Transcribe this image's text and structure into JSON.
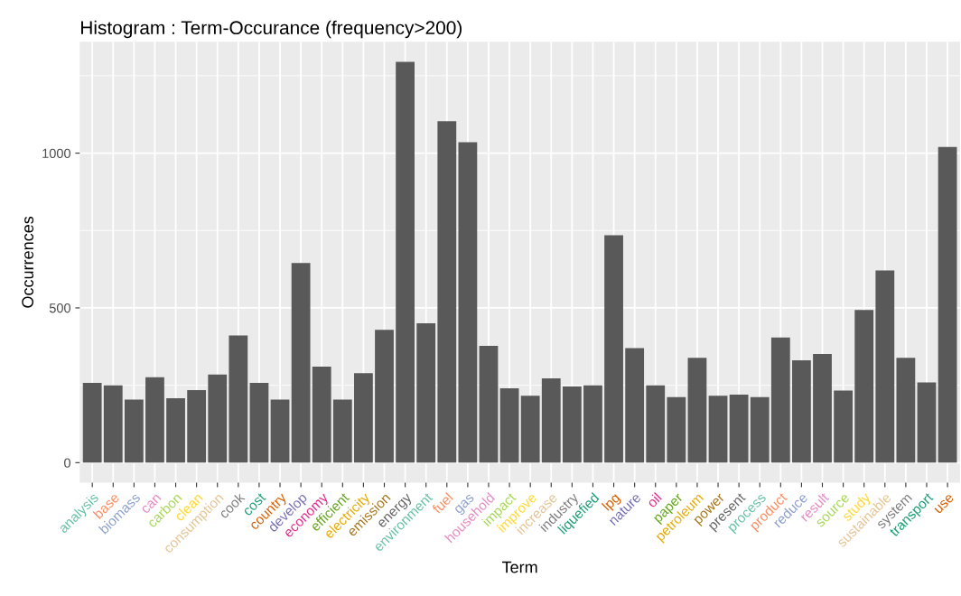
{
  "chart_data": {
    "type": "bar",
    "title": "Histogram : Term-Occurance (frequency>200)",
    "xlabel": "Term",
    "ylabel": "Occurrences",
    "categories": [
      "analysis",
      "base",
      "biomass",
      "can",
      "carbon",
      "clean",
      "consumption",
      "cook",
      "cost",
      "country",
      "develop",
      "economy",
      "efficient",
      "electricity",
      "emission",
      "energy",
      "environment",
      "fuel",
      "gas",
      "household",
      "impact",
      "improve",
      "increase",
      "industry",
      "liquefied",
      "lpg",
      "nature",
      "oil",
      "paper",
      "petroleum",
      "power",
      "present",
      "process",
      "product",
      "reduce",
      "result",
      "source",
      "study",
      "sustainable",
      "system",
      "transport",
      "use"
    ],
    "values": [
      258,
      250,
      204,
      276,
      208,
      234,
      285,
      411,
      258,
      204,
      645,
      310,
      204,
      289,
      429,
      1295,
      450,
      1103,
      1035,
      377,
      240,
      216,
      272,
      246,
      250,
      735,
      370,
      250,
      212,
      339,
      216,
      220,
      212,
      404,
      331,
      351,
      233,
      493,
      621,
      339,
      259,
      1020
    ],
    "color": "#595959",
    "ylim": [
      -65,
      1360
    ],
    "yticks": [
      0,
      500,
      1000
    ],
    "grid": true
  }
}
